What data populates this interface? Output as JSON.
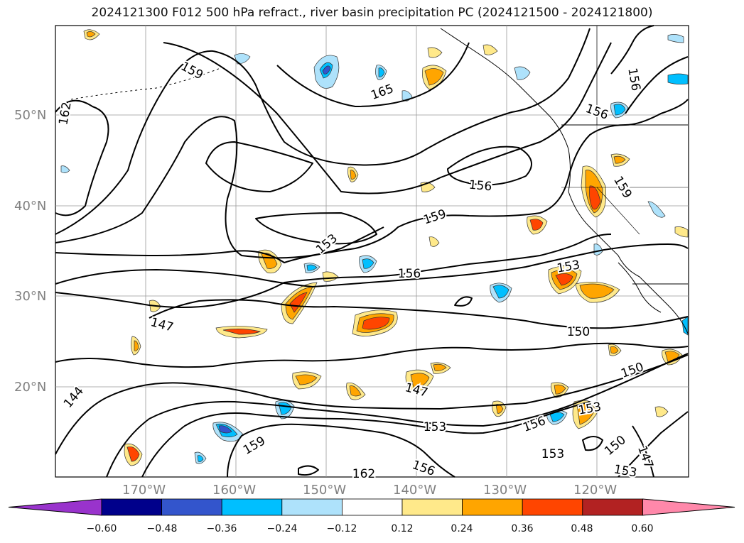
{
  "title": "2024121300 F012 500 hPa refract., river basin precipitation PC (2024121500 - 2024121800)",
  "lat_ticks": [
    {
      "id": "50",
      "label": "50°N"
    },
    {
      "id": "40",
      "label": "40°N"
    },
    {
      "id": "30",
      "label": "30°N"
    },
    {
      "id": "20",
      "label": "20°N"
    }
  ],
  "lon_ticks": [
    {
      "id": "170",
      "label": "170°W"
    },
    {
      "id": "160",
      "label": "160°W"
    },
    {
      "id": "150",
      "label": "150°W"
    },
    {
      "id": "140",
      "label": "140°W"
    },
    {
      "id": "130",
      "label": "130°W"
    },
    {
      "id": "120",
      "label": "120°W"
    }
  ],
  "contour_labels": [
    "159",
    "165",
    "156",
    "162",
    "156",
    "159",
    "156",
    "159",
    "153",
    "156",
    "153",
    "150",
    "147",
    "150",
    "147",
    "144",
    "153",
    "156",
    "159",
    "162",
    "156",
    "153",
    "150",
    "147",
    "153",
    "153"
  ],
  "colorbar": {
    "colors": [
      "#9933cc",
      "#00008b",
      "#3355cc",
      "#00bfff",
      "#aee2fb",
      "#ffffff",
      "#ffe98a",
      "#ffa500",
      "#ff4500",
      "#b22222",
      "#ff88aa"
    ],
    "labels": [
      "−0.60",
      "−0.48",
      "−0.36",
      "−0.24",
      "−0.12",
      "0.12",
      "0.24",
      "0.36",
      "0.48",
      "0.60"
    ]
  }
}
